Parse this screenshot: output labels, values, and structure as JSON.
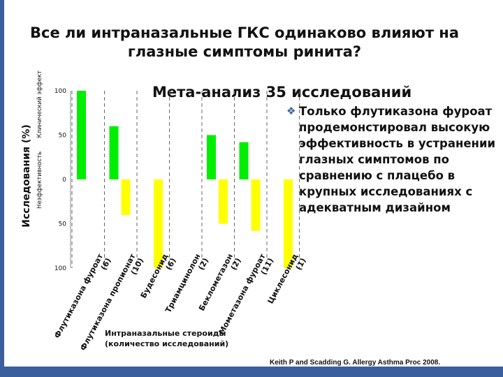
{
  "slide": {
    "title": "Все ли интраназальные ГКС одинаково влияют на глазные симптомы ринита?",
    "subtitle": "Мета-анализ 35 исследований",
    "bullet_text": "Только флутиказона фуроат продемонстировал высокую эффективность в устранении глазных симптомов по сравнению с плацебо в крупных исследованиях с адекватным дизайном",
    "citation": "Keith P and Scadding G.  Allergy Asthma Proc 2008.",
    "colors": {
      "background": "#3a5f9c",
      "positive": "#00ee00",
      "negative": "#ffff00",
      "bullet": "#3a5f9c"
    }
  },
  "chart_data": {
    "type": "bar",
    "ylabel": "Исследования (%)",
    "ylabel_top": "Клинический эффект",
    "ylabel_bottom": "Неэффективность",
    "xlabel_line1": "Интраназальные стероиды",
    "xlabel_line2": "(количество исследований)",
    "yticks": [
      "100",
      "50",
      "0",
      "50",
      "100"
    ],
    "ylim": [
      -100,
      100
    ],
    "categories": [
      "Флутиказона фуроат (6)",
      "Флутиказона пропионат (10)",
      "Будесонид (6)",
      "Триамцинолон (2)",
      "Беклометазон (2)",
      "Мометазона фуроат (11)",
      "Циклесонид (1)"
    ],
    "series": [
      {
        "values": [
          100,
          60,
          0,
          0,
          50,
          42,
          0
        ]
      },
      {
        "values": [
          0,
          -40,
          -100,
          0,
          -50,
          -58,
          -100
        ]
      }
    ]
  }
}
